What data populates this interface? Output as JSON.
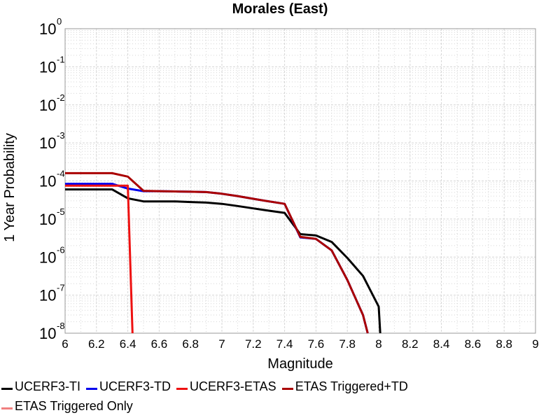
{
  "chart_data": {
    "type": "line",
    "title": "Morales (East)",
    "xlabel": "Magnitude",
    "ylabel": "1 Year Probability",
    "xlim": [
      6,
      9
    ],
    "ylim": [
      1e-08,
      1
    ],
    "yscale": "log",
    "grid": true,
    "legend_position": "bottom",
    "x_ticks": [
      "6",
      "6.2",
      "6.4",
      "6.6",
      "6.8",
      "7",
      "7.2",
      "7.4",
      "7.6",
      "7.8",
      "8",
      "8.2",
      "8.4",
      "8.6",
      "8.8",
      "9"
    ],
    "y_ticks": [
      {
        "base": "10",
        "exp": "0"
      },
      {
        "base": "10",
        "exp": "-1"
      },
      {
        "base": "10",
        "exp": "-2"
      },
      {
        "base": "10",
        "exp": "-3"
      },
      {
        "base": "10",
        "exp": "-4"
      },
      {
        "base": "10",
        "exp": "-5"
      },
      {
        "base": "10",
        "exp": "-6"
      },
      {
        "base": "10",
        "exp": "-7"
      },
      {
        "base": "10",
        "exp": "-8"
      }
    ],
    "series": [
      {
        "name": "UCERF3-TI",
        "color": "#000000",
        "x": [
          6.0,
          6.3,
          6.4,
          6.5,
          6.6,
          6.7,
          6.8,
          6.9,
          7.0,
          7.1,
          7.2,
          7.3,
          7.4,
          7.5,
          7.6,
          7.7,
          7.8,
          7.9,
          8.0,
          8.01
        ],
        "y": [
          6e-05,
          6e-05,
          3.5e-05,
          2.9e-05,
          2.9e-05,
          2.9e-05,
          2.8e-05,
          2.7e-05,
          2.5e-05,
          2.2e-05,
          1.9e-05,
          1.65e-05,
          1.45e-05,
          4e-06,
          3.7e-06,
          2.5e-06,
          9.5e-07,
          3.2e-07,
          5e-08,
          1e-08
        ]
      },
      {
        "name": "UCERF3-TD",
        "color": "#0000ee",
        "x": [
          6.0,
          6.3,
          6.4,
          6.5,
          6.6,
          6.7,
          6.8,
          6.9,
          7.0,
          7.1,
          7.2,
          7.3,
          7.4,
          7.5,
          7.6,
          7.7,
          7.8,
          7.9,
          7.93
        ],
        "y": [
          8.4e-05,
          8.4e-05,
          6.3e-05,
          5.4e-05,
          5.4e-05,
          5.3e-05,
          5.2e-05,
          5.1e-05,
          4.6e-05,
          4e-05,
          3.4e-05,
          2.9e-05,
          2.5e-05,
          3.3e-06,
          3e-06,
          1.5e-06,
          2.5e-07,
          3e-08,
          1e-08
        ]
      },
      {
        "name": "UCERF3-ETAS",
        "color": "#ee1111",
        "x": [
          6.0,
          6.3,
          6.4,
          6.43
        ],
        "y": [
          7.5e-05,
          7.5e-05,
          7.5e-05,
          1e-08
        ]
      },
      {
        "name": "ETAS Triggered+TD",
        "color": "#aa0000",
        "x": [
          6.0,
          6.3,
          6.4,
          6.5,
          6.6,
          6.7,
          6.8,
          6.9,
          7.0,
          7.1,
          7.2,
          7.3,
          7.4,
          7.5,
          7.6,
          7.7,
          7.8,
          7.9,
          7.93
        ],
        "y": [
          0.00016,
          0.00016,
          0.00013,
          5.5e-05,
          5.4e-05,
          5.3e-05,
          5.2e-05,
          5.1e-05,
          4.6e-05,
          4e-05,
          3.4e-05,
          2.9e-05,
          2.5e-05,
          3.4e-06,
          3e-06,
          1.5e-06,
          2.5e-07,
          3e-08,
          1e-08
        ]
      },
      {
        "name": "ETAS Triggered Only",
        "color": "#f08080",
        "x": [],
        "y": []
      }
    ]
  }
}
